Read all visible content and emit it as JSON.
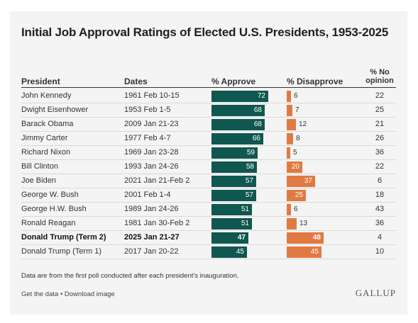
{
  "chart_data": {
    "type": "table",
    "title": "Initial Job Approval Ratings of Elected U.S. Presidents, 1953-2025",
    "columns": [
      "President",
      "Dates",
      "% Approve",
      "% Disapprove",
      "% No opinion"
    ],
    "rows": [
      {
        "president": "John Kennedy",
        "dates": "1961 Feb 10-15",
        "approve": 72,
        "disapprove": 6,
        "no_opinion": 22,
        "bold": false
      },
      {
        "president": "Dwight Eisenhower",
        "dates": "1953 Feb 1-5",
        "approve": 68,
        "disapprove": 7,
        "no_opinion": 25,
        "bold": false
      },
      {
        "president": "Barack Obama",
        "dates": "2009 Jan 21-23",
        "approve": 68,
        "disapprove": 12,
        "no_opinion": 21,
        "bold": false
      },
      {
        "president": "Jimmy Carter",
        "dates": "1977 Feb 4-7",
        "approve": 66,
        "disapprove": 8,
        "no_opinion": 26,
        "bold": false
      },
      {
        "president": "Richard Nixon",
        "dates": "1969 Jan 23-28",
        "approve": 59,
        "disapprove": 5,
        "no_opinion": 36,
        "bold": false
      },
      {
        "president": "Bill Clinton",
        "dates": "1993 Jan 24-26",
        "approve": 58,
        "disapprove": 20,
        "no_opinion": 22,
        "bold": false
      },
      {
        "president": "Joe Biden",
        "dates": "2021 Jan 21-Feb 2",
        "approve": 57,
        "disapprove": 37,
        "no_opinion": 6,
        "bold": false
      },
      {
        "president": "George W. Bush",
        "dates": "2001 Feb 1-4",
        "approve": 57,
        "disapprove": 25,
        "no_opinion": 18,
        "bold": false
      },
      {
        "president": "George H.W. Bush",
        "dates": "1989 Jan 24-26",
        "approve": 51,
        "disapprove": 6,
        "no_opinion": 43,
        "bold": false
      },
      {
        "president": "Ronald Reagan",
        "dates": "1981 Jan 30-Feb 2",
        "approve": 51,
        "disapprove": 13,
        "no_opinion": 36,
        "bold": false
      },
      {
        "president": "Donald Trump (Term 2)",
        "dates": "2025 Jan 21-27",
        "approve": 47,
        "disapprove": 48,
        "no_opinion": 4,
        "bold": true
      },
      {
        "president": "Donald Trump (Term 1)",
        "dates": "2017 Jan 20-22",
        "approve": 45,
        "disapprove": 45,
        "no_opinion": 10,
        "bold": false
      }
    ],
    "colors": {
      "approve": "#0f574f",
      "disapprove": "#e07a42"
    }
  },
  "headers": {
    "president": "President",
    "dates": "Dates",
    "approve": "% Approve",
    "disapprove": "% Disapprove",
    "no_opinion_line1": "% No",
    "no_opinion_line2": "opinion"
  },
  "footnote": "Data are from the first poll conducted after each president's inauguration.",
  "links": {
    "get_data": "Get the data",
    "separator": " • ",
    "download": "Download image"
  },
  "brand": "GALLUP"
}
